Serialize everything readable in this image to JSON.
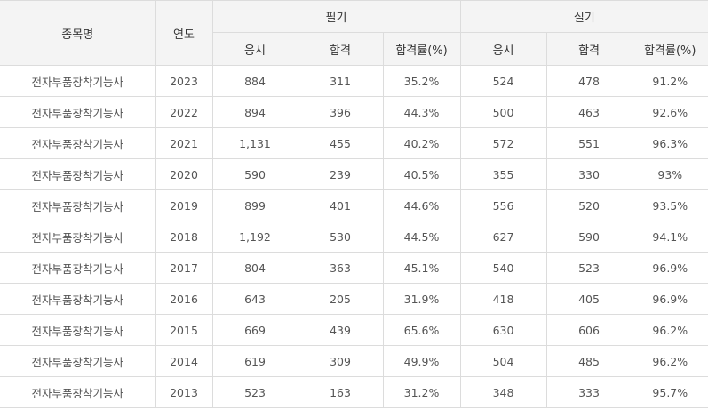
{
  "table": {
    "headers": {
      "name": "종목명",
      "year": "연도",
      "written": "필기",
      "practical": "실기",
      "applicants": "응시",
      "passed": "합격",
      "pass_rate": "합격률(%)"
    },
    "rows": [
      {
        "name": "전자부품장착기능사",
        "year": "2023",
        "w_applied": "884",
        "w_passed": "311",
        "w_rate": "35.2%",
        "p_applied": "524",
        "p_passed": "478",
        "p_rate": "91.2%"
      },
      {
        "name": "전자부품장착기능사",
        "year": "2022",
        "w_applied": "894",
        "w_passed": "396",
        "w_rate": "44.3%",
        "p_applied": "500",
        "p_passed": "463",
        "p_rate": "92.6%"
      },
      {
        "name": "전자부품장착기능사",
        "year": "2021",
        "w_applied": "1,131",
        "w_passed": "455",
        "w_rate": "40.2%",
        "p_applied": "572",
        "p_passed": "551",
        "p_rate": "96.3%"
      },
      {
        "name": "전자부품장착기능사",
        "year": "2020",
        "w_applied": "590",
        "w_passed": "239",
        "w_rate": "40.5%",
        "p_applied": "355",
        "p_passed": "330",
        "p_rate": "93%"
      },
      {
        "name": "전자부품장착기능사",
        "year": "2019",
        "w_applied": "899",
        "w_passed": "401",
        "w_rate": "44.6%",
        "p_applied": "556",
        "p_passed": "520",
        "p_rate": "93.5%"
      },
      {
        "name": "전자부품장착기능사",
        "year": "2018",
        "w_applied": "1,192",
        "w_passed": "530",
        "w_rate": "44.5%",
        "p_applied": "627",
        "p_passed": "590",
        "p_rate": "94.1%"
      },
      {
        "name": "전자부품장착기능사",
        "year": "2017",
        "w_applied": "804",
        "w_passed": "363",
        "w_rate": "45.1%",
        "p_applied": "540",
        "p_passed": "523",
        "p_rate": "96.9%"
      },
      {
        "name": "전자부품장착기능사",
        "year": "2016",
        "w_applied": "643",
        "w_passed": "205",
        "w_rate": "31.9%",
        "p_applied": "418",
        "p_passed": "405",
        "p_rate": "96.9%"
      },
      {
        "name": "전자부품장착기능사",
        "year": "2015",
        "w_applied": "669",
        "w_passed": "439",
        "w_rate": "65.6%",
        "p_applied": "630",
        "p_passed": "606",
        "p_rate": "96.2%"
      },
      {
        "name": "전자부품장착기능사",
        "year": "2014",
        "w_applied": "619",
        "w_passed": "309",
        "w_rate": "49.9%",
        "p_applied": "504",
        "p_passed": "485",
        "p_rate": "96.2%"
      },
      {
        "name": "전자부품장착기능사",
        "year": "2013",
        "w_applied": "523",
        "w_passed": "163",
        "w_rate": "31.2%",
        "p_applied": "348",
        "p_passed": "333",
        "p_rate": "95.7%"
      }
    ]
  }
}
